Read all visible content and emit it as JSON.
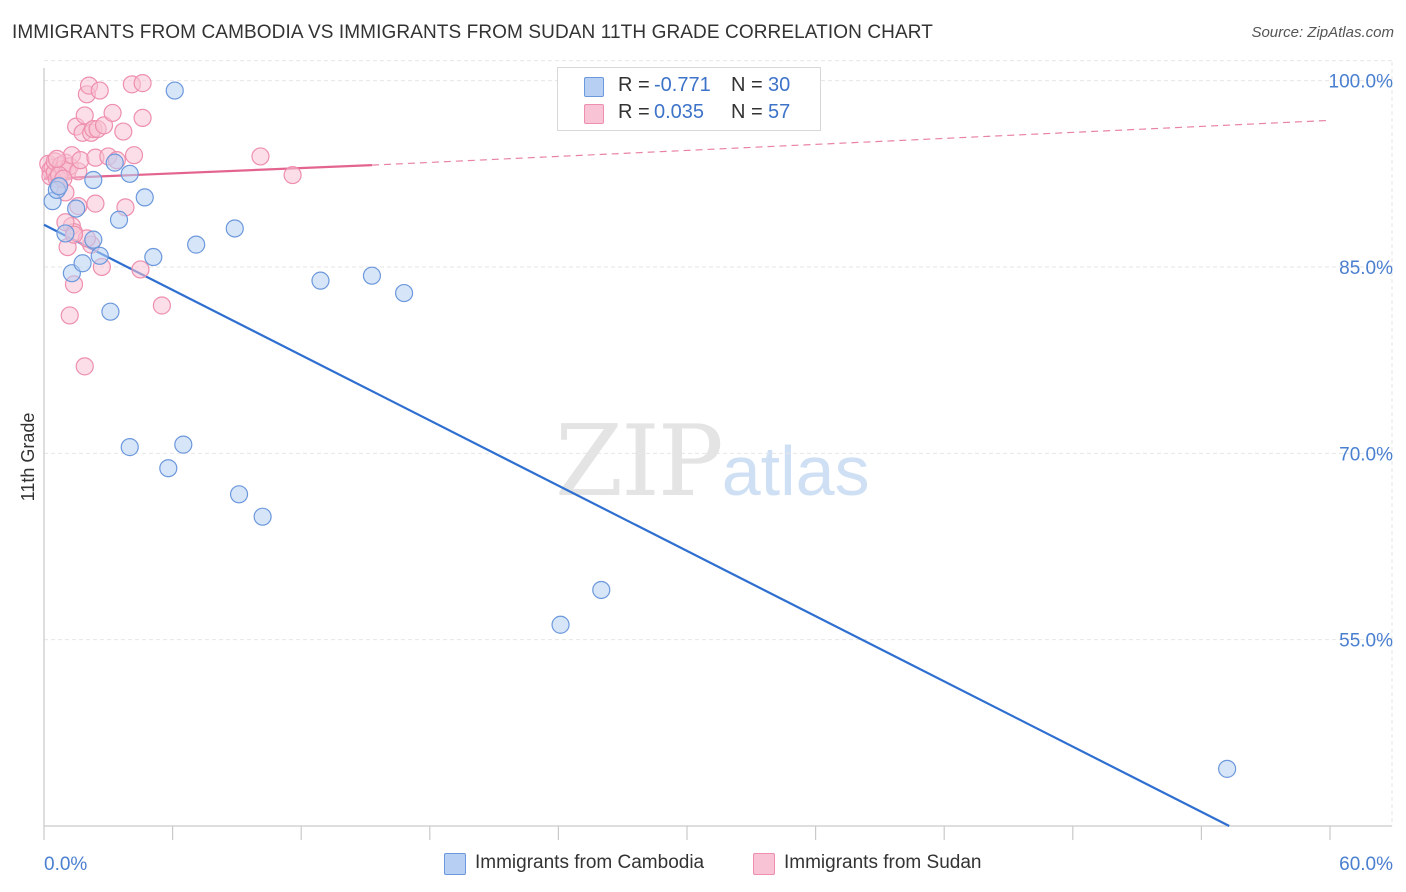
{
  "title": "IMMIGRANTS FROM CAMBODIA VS IMMIGRANTS FROM SUDAN 11TH GRADE CORRELATION CHART",
  "source": "Source: ZipAtlas.com",
  "watermark": {
    "zip": "ZIP",
    "atlas": "atlas"
  },
  "colors": {
    "cambodia_fill": "#b7cff3",
    "cambodia_stroke": "#6c98dc",
    "cambodia_line": "#2f6fd0",
    "sudan_fill": "#f8c3d4",
    "sudan_stroke": "#ee8fae",
    "sudan_line": "#e3648f",
    "grid": "#e6e6e6",
    "tick_text": "#4a7fd0"
  },
  "legend": {
    "cambodia": {
      "r_label": "R =",
      "r_value": "-0.771",
      "n_label": "N =",
      "n_value": "30"
    },
    "sudan": {
      "r_label": "R =",
      "r_value": "0.035",
      "n_label": "N =",
      "n_value": "57"
    }
  },
  "chart_data": {
    "type": "scatter",
    "title": "IMMIGRANTS FROM CAMBODIA VS IMMIGRANTS FROM SUDAN 11TH GRADE CORRELATION CHART",
    "xlabel": "",
    "ylabel": "11th Grade",
    "xlim": [
      0,
      60
    ],
    "ylim": [
      40,
      101.5
    ],
    "x_tick_labels": [
      "0.0%",
      "60.0%"
    ],
    "y_ticks": [
      55,
      70,
      85,
      100
    ],
    "y_tick_labels": [
      "55.0%",
      "70.0%",
      "85.0%",
      "100.0%"
    ],
    "grid": true,
    "legend_position": "top-center and bottom",
    "series": [
      {
        "name": "Immigrants from Cambodia",
        "r": -0.771,
        "n": 30,
        "trend": {
          "x": [
            0,
            55.3
          ],
          "y": [
            88.4,
            40.0
          ],
          "style": "solid"
        },
        "points": [
          [
            0.4,
            90.3
          ],
          [
            0.6,
            91.2
          ],
          [
            0.7,
            91.5
          ],
          [
            1.0,
            87.7
          ],
          [
            1.3,
            84.5
          ],
          [
            1.5,
            89.7
          ],
          [
            1.8,
            85.3
          ],
          [
            2.3,
            87.2
          ],
          [
            2.6,
            85.9
          ],
          [
            3.1,
            81.4
          ],
          [
            3.3,
            93.4
          ],
          [
            3.5,
            88.8
          ],
          [
            4.0,
            92.5
          ],
          [
            4.7,
            90.6
          ],
          [
            5.1,
            85.8
          ],
          [
            6.1,
            99.2
          ],
          [
            7.1,
            86.8
          ],
          [
            8.9,
            88.1
          ],
          [
            12.9,
            83.9
          ],
          [
            15.3,
            84.3
          ],
          [
            16.8,
            82.9
          ],
          [
            4.0,
            70.5
          ],
          [
            5.8,
            68.8
          ],
          [
            6.5,
            70.7
          ],
          [
            9.1,
            66.7
          ],
          [
            10.2,
            64.9
          ],
          [
            24.1,
            56.2
          ],
          [
            26.0,
            59.0
          ],
          [
            55.2,
            44.6
          ],
          [
            2.3,
            92.0
          ]
        ]
      },
      {
        "name": "Immigrants from Sudan",
        "r": 0.035,
        "n": 57,
        "trend": {
          "x": [
            0,
            15.3
          ],
          "y": [
            92.1,
            93.2
          ],
          "style": "solid",
          "extended_x": [
            15.3,
            60
          ],
          "extended_y": [
            93.2,
            96.8
          ],
          "extended_style": "dashed"
        },
        "points": [
          [
            0.2,
            93.3
          ],
          [
            0.3,
            92.8
          ],
          [
            0.3,
            92.3
          ],
          [
            0.4,
            93.0
          ],
          [
            0.5,
            92.6
          ],
          [
            0.5,
            93.5
          ],
          [
            0.6,
            92.1
          ],
          [
            0.7,
            91.6
          ],
          [
            0.8,
            93.2
          ],
          [
            0.9,
            92.9
          ],
          [
            1.0,
            91.0
          ],
          [
            1.0,
            93.4
          ],
          [
            1.1,
            92.7
          ],
          [
            1.2,
            93.1
          ],
          [
            1.3,
            94.0
          ],
          [
            1.3,
            88.3
          ],
          [
            1.4,
            87.8
          ],
          [
            1.5,
            96.3
          ],
          [
            1.6,
            92.7
          ],
          [
            1.7,
            93.6
          ],
          [
            1.8,
            95.8
          ],
          [
            1.9,
            97.2
          ],
          [
            2.0,
            98.9
          ],
          [
            2.1,
            99.6
          ],
          [
            2.2,
            95.8
          ],
          [
            2.3,
            96.1
          ],
          [
            2.4,
            93.8
          ],
          [
            2.5,
            96.1
          ],
          [
            2.6,
            99.2
          ],
          [
            2.8,
            96.4
          ],
          [
            3.0,
            93.9
          ],
          [
            3.2,
            97.4
          ],
          [
            3.4,
            93.6
          ],
          [
            3.7,
            95.9
          ],
          [
            3.8,
            89.8
          ],
          [
            4.1,
            99.7
          ],
          [
            4.2,
            94.0
          ],
          [
            4.5,
            84.8
          ],
          [
            4.6,
            99.8
          ],
          [
            4.6,
            97.0
          ],
          [
            5.5,
            81.9
          ],
          [
            10.1,
            93.9
          ],
          [
            11.6,
            92.4
          ],
          [
            1.2,
            81.1
          ],
          [
            1.4,
            83.6
          ],
          [
            1.9,
            77.0
          ],
          [
            2.2,
            86.8
          ],
          [
            2.7,
            85.0
          ],
          [
            1.1,
            86.6
          ],
          [
            0.7,
            92.4
          ],
          [
            1.6,
            89.9
          ],
          [
            2.0,
            87.3
          ],
          [
            1.0,
            88.6
          ],
          [
            0.9,
            92.1
          ],
          [
            2.4,
            90.1
          ],
          [
            1.4,
            87.6
          ],
          [
            0.6,
            93.7
          ]
        ]
      }
    ]
  },
  "bottom_legend": {
    "cambodia": "Immigrants from Cambodia",
    "sudan": "Immigrants from Sudan"
  }
}
